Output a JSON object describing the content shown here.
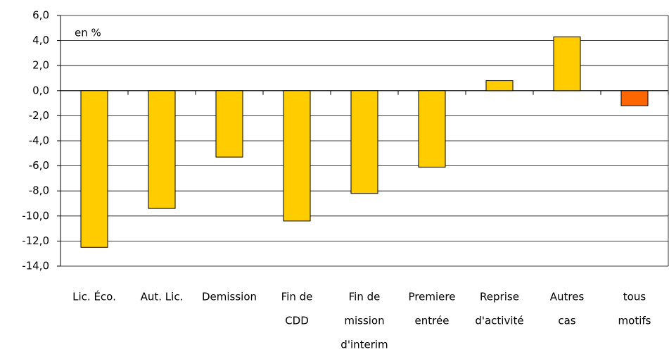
{
  "chart_data": {
    "type": "bar",
    "annotation": "en %",
    "categories": [
      [
        "Lic. Éco."
      ],
      [
        "Aut. Lic."
      ],
      [
        "Demission"
      ],
      [
        "Fin de",
        "CDD"
      ],
      [
        "Fin de",
        "mission",
        "d'interim"
      ],
      [
        "Premiere",
        "entrée"
      ],
      [
        "Reprise",
        "d'activité"
      ],
      [
        "Autres",
        "cas"
      ],
      [
        "tous",
        "motifs"
      ]
    ],
    "values": [
      -12.5,
      -9.4,
      -5.3,
      -10.4,
      -8.2,
      -6.1,
      0.8,
      4.3,
      -1.2
    ],
    "colors": [
      "#ffcc00",
      "#ffcc00",
      "#ffcc00",
      "#ffcc00",
      "#ffcc00",
      "#ffcc00",
      "#ffcc00",
      "#ffcc00",
      "#ff6600"
    ],
    "ylim": [
      -14,
      6
    ],
    "yticks": [
      {
        "value": -14,
        "label": "-14,0"
      },
      {
        "value": -12,
        "label": "-12,0"
      },
      {
        "value": -10,
        "label": "-10,0"
      },
      {
        "value": -8,
        "label": "-8,0"
      },
      {
        "value": -6,
        "label": "-6,0"
      },
      {
        "value": -4,
        "label": "-4,0"
      },
      {
        "value": -2,
        "label": "-2,0"
      },
      {
        "value": 0,
        "label": "0,0"
      },
      {
        "value": 2,
        "label": "2,0"
      },
      {
        "value": 4,
        "label": "4,0"
      },
      {
        "value": 6,
        "label": "6,0"
      }
    ],
    "grid": true
  }
}
